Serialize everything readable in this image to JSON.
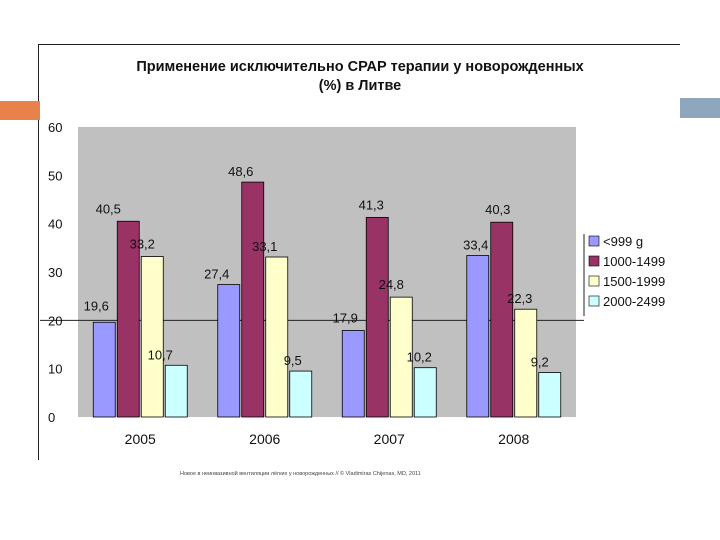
{
  "title_line1": "Применение исключительно СРАР терапии у новорожденных",
  "title_line2": "(%) в Литве",
  "footer_text": "Новое в неинвазивной вентиляции лёгких у новорожденных // © Vladimiras Chijenas, MD, 2011",
  "chart_data": {
    "type": "bar",
    "categories": [
      "2005",
      "2006",
      "2007",
      "2008"
    ],
    "series": [
      {
        "name": "<999 g",
        "color": "#9999ff",
        "values": [
          19.6,
          27.4,
          17.9,
          33.4
        ],
        "labels": [
          "19,6",
          "27,4",
          "17,9",
          "33,4"
        ]
      },
      {
        "name": "1000-1499",
        "color": "#993366",
        "values": [
          40.5,
          48.6,
          41.3,
          40.3
        ],
        "labels": [
          "40,5",
          "48,6",
          "41,3",
          "40,3"
        ]
      },
      {
        "name": "1500-1999",
        "color": "#ffffcc",
        "values": [
          33.2,
          33.1,
          24.8,
          22.3
        ],
        "labels": [
          "33,2",
          "33,1",
          "24,8",
          "22,3"
        ]
      },
      {
        "name": "2000-2499",
        "color": "#ccffff",
        "values": [
          10.7,
          9.5,
          10.2,
          9.2
        ],
        "labels": [
          "10,7",
          "9,5",
          "10,2",
          "9,2"
        ]
      }
    ],
    "yticks": [
      0,
      10,
      20,
      30,
      40,
      50,
      60
    ],
    "ylim": [
      0,
      60
    ],
    "grid_value": 20,
    "plot_bg": "#c0c0c0",
    "legend_position": "right"
  }
}
